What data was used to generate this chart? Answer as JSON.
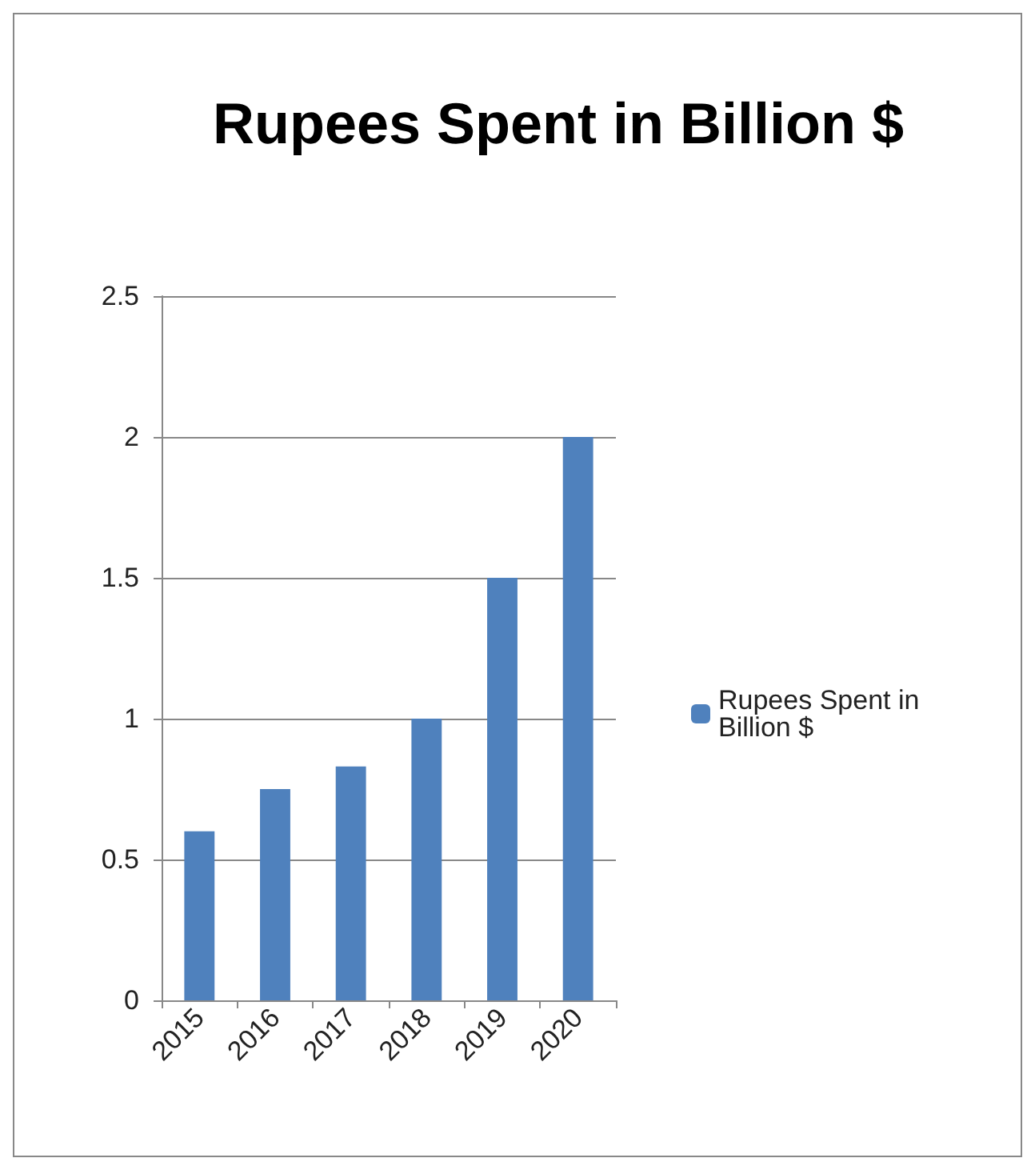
{
  "chart_data": {
    "type": "bar",
    "title": "Rupees Spent in Billion $",
    "categories": [
      "2015",
      "2016",
      "2017",
      "2018",
      "2019",
      "2020"
    ],
    "series": [
      {
        "name": "Rupees Spent in Billion $",
        "color": "#4f81bd",
        "values": [
          0.6,
          0.75,
          0.83,
          1,
          1.5,
          2
        ]
      }
    ],
    "ylim": [
      0,
      2.5
    ],
    "yticks": [
      0,
      0.5,
      1,
      1.5,
      2,
      2.5
    ],
    "grid": "y",
    "legend": "right"
  }
}
